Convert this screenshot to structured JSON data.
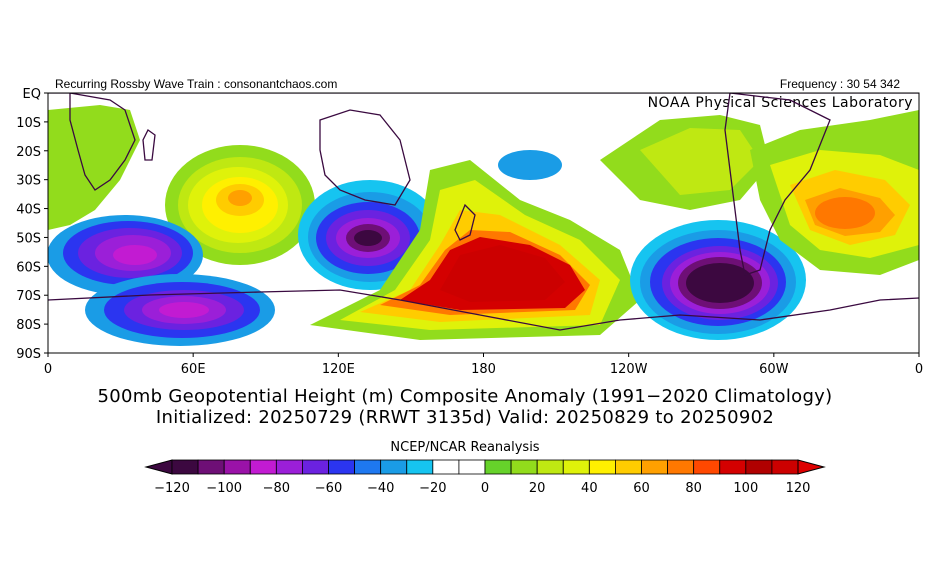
{
  "header": {
    "left_text": "Recurring Rossby Wave Train : consonantchaos.com",
    "right_text": "Frequency : 30 54 342",
    "lab_text": "NOAA Physical Sciences Laboratory"
  },
  "map": {
    "lat_labels": [
      "EQ",
      "10S",
      "20S",
      "30S",
      "40S",
      "50S",
      "60S",
      "70S",
      "80S",
      "90S"
    ],
    "lon_labels": [
      "0",
      "60E",
      "120E",
      "180",
      "120W",
      "60W",
      "0"
    ],
    "anomalies": [
      {
        "label": "South Atlantic / S. Africa positive",
        "sign": "positive",
        "peak": 15
      },
      {
        "label": "S. Indian Ocean positive",
        "sign": "positive",
        "peak": 40
      },
      {
        "label": "SW Indian Ocean negative",
        "sign": "negative",
        "peak": -80
      },
      {
        "label": "Antarctic (60E) negative",
        "sign": "negative",
        "peak": -70
      },
      {
        "label": "S. of Australia negative",
        "sign": "negative",
        "peak": -95
      },
      {
        "label": "S. Pacific (180) positive",
        "sign": "positive",
        "peak": 120
      },
      {
        "label": "Central S. Pacific negative",
        "sign": "negative",
        "peak": -25
      },
      {
        "label": "SE Pacific negative",
        "sign": "negative",
        "peak": -120
      },
      {
        "label": "S. America / Atlantic positive",
        "sign": "positive",
        "peak": 80
      }
    ]
  },
  "titles": {
    "line1": "500mb Geopotential Height (m) Composite Anomaly (1991−2020 Climatology)",
    "line2": "Initialized: 20250729 (RRWT 3135d) Valid: 20250829 to 20250902",
    "source": "NCEP/NCAR Reanalysis"
  },
  "colorbar": {
    "min": -120,
    "max": 120,
    "step": 10,
    "tick_labels": [
      "−120",
      "−100",
      "−80",
      "−60",
      "−40",
      "−20",
      "0",
      "20",
      "40",
      "60",
      "80",
      "100",
      "120"
    ],
    "colors": [
      "#3c0840",
      "#6e0f76",
      "#9a12a8",
      "#c21bd2",
      "#9b1fd8",
      "#6b22e0",
      "#2b35f0",
      "#1e78f0",
      "#1a9ce6",
      "#16c4f0",
      "#ffffff",
      "#ffffff",
      "#66d22a",
      "#92dc1c",
      "#bfe812",
      "#dff20a",
      "#fff000",
      "#ffcc00",
      "#ffa000",
      "#ff7800",
      "#ff4800",
      "#d40000",
      "#b00000",
      "#cc0000"
    ],
    "below_color": "#3c0840",
    "above_color": "#dd0000"
  }
}
